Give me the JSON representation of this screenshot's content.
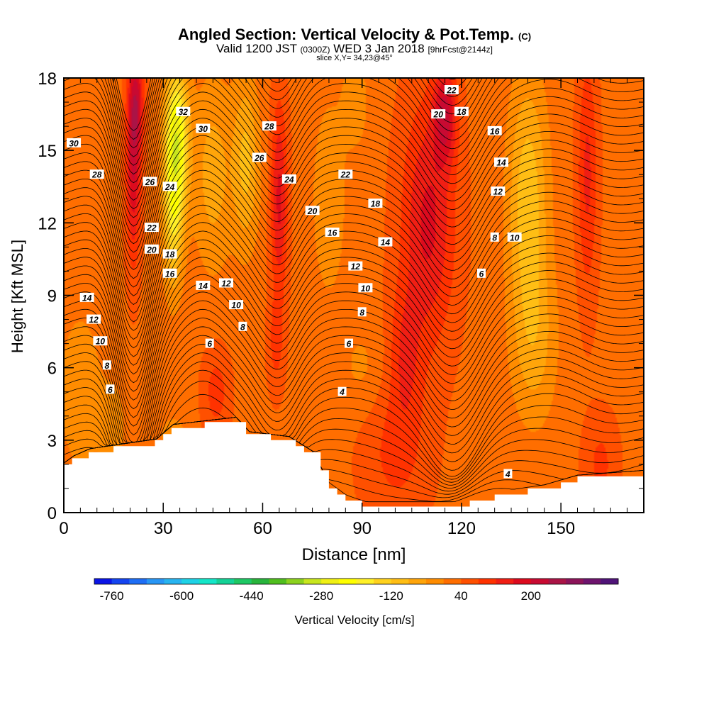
{
  "title": {
    "main": "Angled Section: Vertical Velocity & Pot.Temp.",
    "unit_tag": "(C)",
    "valid_prefix": "Valid 1200 JST",
    "utc": "(0300Z)",
    "date": "WED 3 Jan 2018",
    "forecast": "[9hrFcst@2144z]",
    "slice": "slice X,Y= 34,23@45°"
  },
  "chart_data": {
    "type": "contour",
    "title": "Angled Section: Vertical Velocity & Pot.Temp. (C)",
    "xlabel": "Distance [nm]",
    "ylabel": "Height [Kft MSL]",
    "xlim": [
      0,
      175
    ],
    "ylim": [
      0,
      18
    ],
    "x_ticks": [
      0,
      30,
      60,
      90,
      120,
      150
    ],
    "y_ticks": [
      0,
      3,
      6,
      9,
      12,
      15,
      18
    ],
    "colorbar": {
      "label": "Vertical Velocity [cm/s]",
      "min": -780,
      "step": 40,
      "tick_labels": [
        -760,
        -600,
        -440,
        -280,
        -120,
        40,
        200
      ],
      "colors": [
        "#0a14e6",
        "#1444f0",
        "#1e6ef5",
        "#2896f5",
        "#28b4f0",
        "#1ed2e6",
        "#14e6c8",
        "#14d296",
        "#1ec864",
        "#28b43c",
        "#50be1e",
        "#8cd21e",
        "#c8e61e",
        "#f0f014",
        "#ffff00",
        "#fff028",
        "#ffd21e",
        "#ffbe14",
        "#ffa50a",
        "#ff8c00",
        "#ff6e00",
        "#ff5000",
        "#ff3200",
        "#f01e14",
        "#dc0a1e",
        "#c80a32",
        "#aa1446",
        "#8c145a",
        "#6e146e",
        "#501478"
      ]
    },
    "background_velocity": 50,
    "velocity_cells": [
      {
        "x": 21,
        "y": 14.5,
        "sx": 2.2,
        "sy": 4.0,
        "w": 170
      },
      {
        "x": 22,
        "y": 17.0,
        "sx": 2.3,
        "sy": 2.0,
        "w": 120
      },
      {
        "x": 34,
        "y": 15.5,
        "sx": 3.5,
        "sy": 3.0,
        "w": -280
      },
      {
        "x": 33,
        "y": 12.0,
        "sx": 3.0,
        "sy": 3.0,
        "w": -150
      },
      {
        "x": 45,
        "y": 14.0,
        "sx": 6.0,
        "sy": 4.0,
        "w": -90
      },
      {
        "x": 55,
        "y": 14.5,
        "sx": 4.0,
        "sy": 3.5,
        "w": -120
      },
      {
        "x": 46,
        "y": 5.0,
        "sx": 4.0,
        "sy": 1.8,
        "w": 70
      },
      {
        "x": 65,
        "y": 13.0,
        "sx": 2.5,
        "sy": 4.0,
        "w": 140
      },
      {
        "x": 64,
        "y": 7.0,
        "sx": 2.5,
        "sy": 2.0,
        "w": 60
      },
      {
        "x": 110,
        "y": 12.0,
        "sx": 8.0,
        "sy": 5.0,
        "w": 140
      },
      {
        "x": 115,
        "y": 16.5,
        "sx": 3.5,
        "sy": 2.0,
        "w": 160
      },
      {
        "x": 103,
        "y": 6.5,
        "sx": 5.0,
        "sy": 3.0,
        "w": 80
      },
      {
        "x": 100,
        "y": 2.5,
        "sx": 10.0,
        "sy": 3.0,
        "w": 60
      },
      {
        "x": 140,
        "y": 13.0,
        "sx": 6.0,
        "sy": 5.0,
        "w": -140
      },
      {
        "x": 142,
        "y": 7.0,
        "sx": 7.0,
        "sy": 3.5,
        "w": -80
      },
      {
        "x": 158,
        "y": 14.0,
        "sx": 3.0,
        "sy": 5.0,
        "w": 100
      },
      {
        "x": 162,
        "y": 2.0,
        "sx": 5.0,
        "sy": 2.0,
        "w": 60
      },
      {
        "x": 5,
        "y": 5.0,
        "sx": 7.0,
        "sy": 3.5,
        "w": -60
      },
      {
        "x": 15,
        "y": 3.5,
        "sx": 4.0,
        "sy": 2.0,
        "w": -50
      },
      {
        "x": 80,
        "y": 13.0,
        "sx": 5.0,
        "sy": 4.0,
        "w": -70
      },
      {
        "x": 88,
        "y": 17.0,
        "sx": 4.0,
        "sy": 2.0,
        "w": -60
      },
      {
        "x": 90,
        "y": 6.0,
        "sx": 7.0,
        "sy": 2.0,
        "w": -40
      },
      {
        "x": 33,
        "y": 3.2,
        "sx": 4.0,
        "sy": 0.8,
        "w": -60
      }
    ],
    "terrain": [
      [
        0,
        1.9
      ],
      [
        3,
        2.2
      ],
      [
        8,
        2.5
      ],
      [
        28,
        2.9
      ],
      [
        33,
        3.5
      ],
      [
        52,
        3.8
      ],
      [
        56,
        3.2
      ],
      [
        68,
        3.0
      ],
      [
        75,
        2.4
      ],
      [
        80,
        1.1
      ],
      [
        85,
        0.6
      ],
      [
        90,
        0.3
      ],
      [
        108,
        0.3
      ],
      [
        118,
        0.3
      ],
      [
        130,
        0.7
      ],
      [
        145,
        1.0
      ],
      [
        155,
        1.4
      ],
      [
        175,
        1.6
      ]
    ],
    "isentrope_labels": [
      {
        "text": "30",
        "x": 3,
        "y": 15.3
      },
      {
        "text": "28",
        "x": 10,
        "y": 14.0
      },
      {
        "text": "26",
        "x": 26,
        "y": 13.7
      },
      {
        "text": "24",
        "x": 32,
        "y": 13.5
      },
      {
        "text": "22",
        "x": 26.5,
        "y": 11.8
      },
      {
        "text": "20",
        "x": 26.5,
        "y": 10.9
      },
      {
        "text": "18",
        "x": 32,
        "y": 10.7
      },
      {
        "text": "16",
        "x": 32,
        "y": 9.9
      },
      {
        "text": "14",
        "x": 42,
        "y": 9.4
      },
      {
        "text": "12",
        "x": 49,
        "y": 9.5
      },
      {
        "text": "10",
        "x": 52,
        "y": 8.6
      },
      {
        "text": "8",
        "x": 54,
        "y": 7.7
      },
      {
        "text": "6",
        "x": 44,
        "y": 7.0
      },
      {
        "text": "14",
        "x": 7,
        "y": 8.9
      },
      {
        "text": "12",
        "x": 9,
        "y": 8.0
      },
      {
        "text": "10",
        "x": 11,
        "y": 7.1
      },
      {
        "text": "8",
        "x": 13,
        "y": 6.1
      },
      {
        "text": "6",
        "x": 14,
        "y": 5.1
      },
      {
        "text": "32",
        "x": 36,
        "y": 16.6
      },
      {
        "text": "30",
        "x": 42,
        "y": 15.9
      },
      {
        "text": "28",
        "x": 62,
        "y": 16.0
      },
      {
        "text": "26",
        "x": 59,
        "y": 14.7
      },
      {
        "text": "24",
        "x": 68,
        "y": 13.8
      },
      {
        "text": "22",
        "x": 85,
        "y": 14.0
      },
      {
        "text": "20",
        "x": 75,
        "y": 12.5
      },
      {
        "text": "18",
        "x": 94,
        "y": 12.8
      },
      {
        "text": "16",
        "x": 81,
        "y": 11.6
      },
      {
        "text": "14",
        "x": 97,
        "y": 11.2
      },
      {
        "text": "12",
        "x": 88,
        "y": 10.2
      },
      {
        "text": "10",
        "x": 91,
        "y": 9.3
      },
      {
        "text": "8",
        "x": 90,
        "y": 8.3
      },
      {
        "text": "6",
        "x": 86,
        "y": 7.0
      },
      {
        "text": "4",
        "x": 84,
        "y": 5.0
      },
      {
        "text": "22",
        "x": 117,
        "y": 17.5
      },
      {
        "text": "20",
        "x": 113,
        "y": 16.5
      },
      {
        "text": "18",
        "x": 120,
        "y": 16.6
      },
      {
        "text": "16",
        "x": 130,
        "y": 15.8
      },
      {
        "text": "14",
        "x": 132,
        "y": 14.5
      },
      {
        "text": "12",
        "x": 131,
        "y": 13.3
      },
      {
        "text": "10",
        "x": 136,
        "y": 11.4
      },
      {
        "text": "8",
        "x": 130,
        "y": 11.4
      },
      {
        "text": "6",
        "x": 126,
        "y": 9.9
      },
      {
        "text": "4",
        "x": 134,
        "y": 1.6
      }
    ]
  }
}
